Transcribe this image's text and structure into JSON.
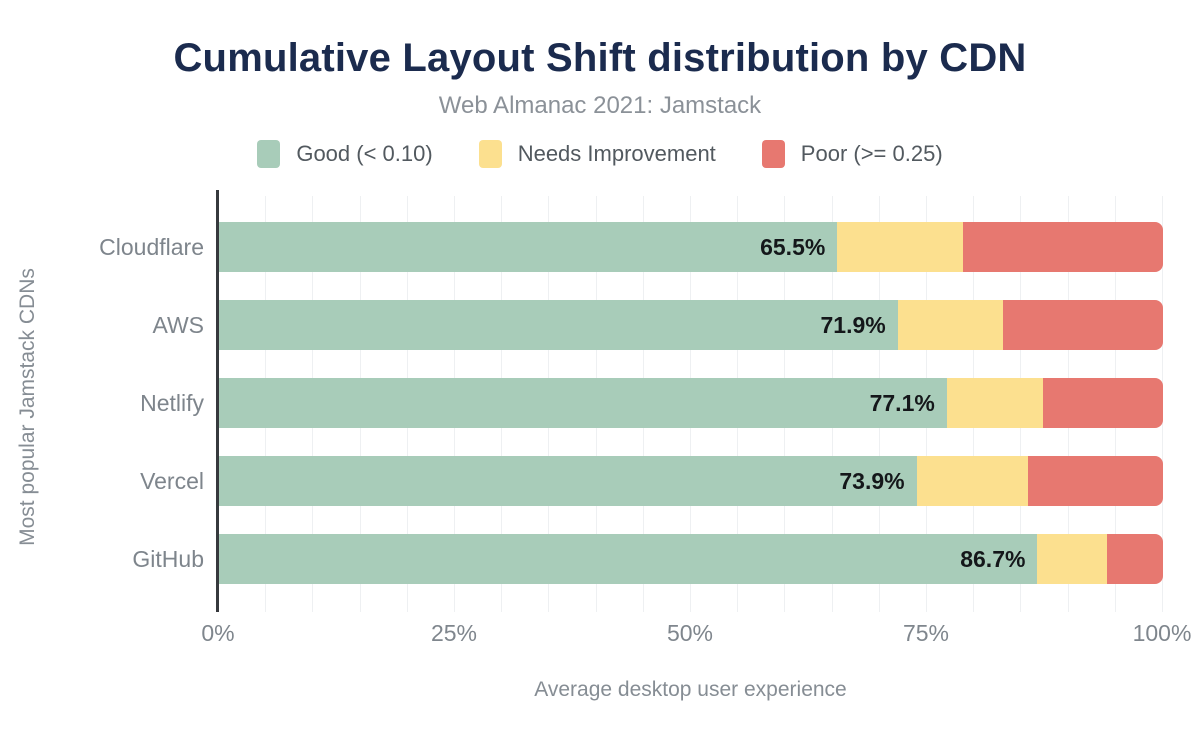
{
  "header": {
    "title": "Cumulative Layout Shift distribution by CDN",
    "subtitle": "Web Almanac 2021: Jamstack"
  },
  "legend": [
    {
      "label": "Good (< 0.10)",
      "color": "#a8ccb9",
      "icon": "legend-swatch-good"
    },
    {
      "label": "Needs Improvement",
      "color": "#fce08f",
      "icon": "legend-swatch-needs-improvement"
    },
    {
      "label": "Poor (>= 0.25)",
      "color": "#e77870",
      "icon": "legend-swatch-poor"
    }
  ],
  "axes": {
    "x_label": "Average desktop user experience",
    "y_label": "Most popular Jamstack CDNs",
    "x_ticks": [
      {
        "label": "0%",
        "value": 0
      },
      {
        "label": "25%",
        "value": 25
      },
      {
        "label": "50%",
        "value": 50
      },
      {
        "label": "75%",
        "value": 75
      },
      {
        "label": "100%",
        "value": 100
      }
    ]
  },
  "chart_data": {
    "type": "bar",
    "orientation": "horizontal-stacked",
    "title": "Cumulative Layout Shift distribution by CDN",
    "subtitle": "Web Almanac 2021: Jamstack",
    "xlabel": "Average desktop user experience",
    "ylabel": "Most popular Jamstack CDNs",
    "xlim": [
      0,
      100
    ],
    "grid": {
      "visible": true,
      "step_pct": 5
    },
    "legend_position": "top-center",
    "categories": [
      "Cloudflare",
      "AWS",
      "Netlify",
      "Vercel",
      "GitHub"
    ],
    "series": [
      {
        "name": "Good (< 0.10)",
        "color": "#a8ccb9",
        "values": [
          65.5,
          71.9,
          77.1,
          73.9,
          86.7
        ]
      },
      {
        "name": "Needs Improvement",
        "color": "#fce08f",
        "values": [
          13.3,
          11.2,
          10.2,
          11.8,
          7.4
        ]
      },
      {
        "name": "Poor (>= 0.25)",
        "color": "#e77870",
        "values": [
          21.2,
          16.9,
          12.7,
          14.3,
          5.9
        ]
      }
    ],
    "value_labels": [
      "65.5%",
      "71.9%",
      "77.1%",
      "73.9%",
      "86.7%"
    ],
    "value_label_series": "Good (< 0.10)"
  },
  "colors": {
    "title": "#1b2b4e",
    "subtitle": "#8b9198",
    "good": "#a8ccb9",
    "needs_improvement": "#fce08f",
    "poor": "#e77870",
    "axis_line": "#36393d",
    "gridline": "#eef0f2",
    "tick_text": "#7f868d"
  }
}
